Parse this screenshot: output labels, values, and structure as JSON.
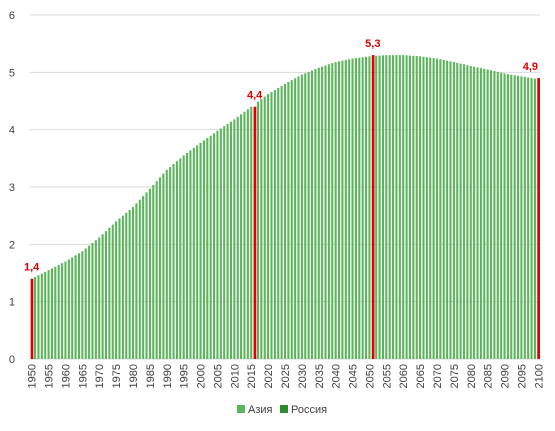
{
  "chart_data": {
    "type": "bar",
    "title": "",
    "xlabel": "",
    "ylabel": "",
    "ylim": [
      0,
      6
    ],
    "yticks": [
      0,
      1,
      2,
      3,
      4,
      5,
      6
    ],
    "xrange": [
      1950,
      2100
    ],
    "xtick_labels": [
      "1950",
      "1955",
      "1960",
      "1965",
      "1970",
      "1975",
      "1980",
      "1985",
      "1990",
      "1995",
      "2000",
      "2005",
      "2010",
      "2015",
      "2020",
      "2025",
      "2030",
      "2035",
      "2040",
      "2045",
      "2050",
      "2055",
      "2060",
      "2065",
      "2070",
      "2075",
      "2080",
      "2085",
      "2090",
      "2095",
      "2100"
    ],
    "series": [
      {
        "name": "Азия",
        "color": "#5bb55b"
      },
      {
        "name": "Россия",
        "color": "#2e8b2e"
      }
    ],
    "anchors": [
      [
        1950,
        1.4
      ],
      [
        1955,
        1.55
      ],
      [
        1960,
        1.7
      ],
      [
        1965,
        1.88
      ],
      [
        1970,
        2.12
      ],
      [
        1975,
        2.4
      ],
      [
        1980,
        2.65
      ],
      [
        1985,
        2.97
      ],
      [
        1990,
        3.3
      ],
      [
        1995,
        3.55
      ],
      [
        2000,
        3.77
      ],
      [
        2005,
        3.98
      ],
      [
        2010,
        4.18
      ],
      [
        2015,
        4.4
      ],
      [
        2020,
        4.62
      ],
      [
        2025,
        4.8
      ],
      [
        2030,
        4.96
      ],
      [
        2035,
        5.08
      ],
      [
        2040,
        5.18
      ],
      [
        2045,
        5.24
      ],
      [
        2050,
        5.28
      ],
      [
        2055,
        5.3
      ],
      [
        2060,
        5.3
      ],
      [
        2065,
        5.28
      ],
      [
        2070,
        5.24
      ],
      [
        2075,
        5.18
      ],
      [
        2080,
        5.11
      ],
      [
        2085,
        5.05
      ],
      [
        2090,
        4.98
      ],
      [
        2095,
        4.93
      ],
      [
        2100,
        4.88
      ]
    ],
    "highlight_bars": [
      {
        "x": 1950,
        "value": 1.4,
        "label": "1,4",
        "color": "#e00000"
      },
      {
        "x": 2016,
        "value": 4.4,
        "label": "4,4",
        "color": "#e00000"
      },
      {
        "x": 2051,
        "value": 5.3,
        "label": "5,3",
        "color": "#e00000"
      },
      {
        "x": 2100,
        "value": 4.9,
        "label": "4,9",
        "color": "#e00000"
      }
    ],
    "grid": true,
    "gridColor": "#d9d9d9",
    "legend_position": "bottom"
  }
}
